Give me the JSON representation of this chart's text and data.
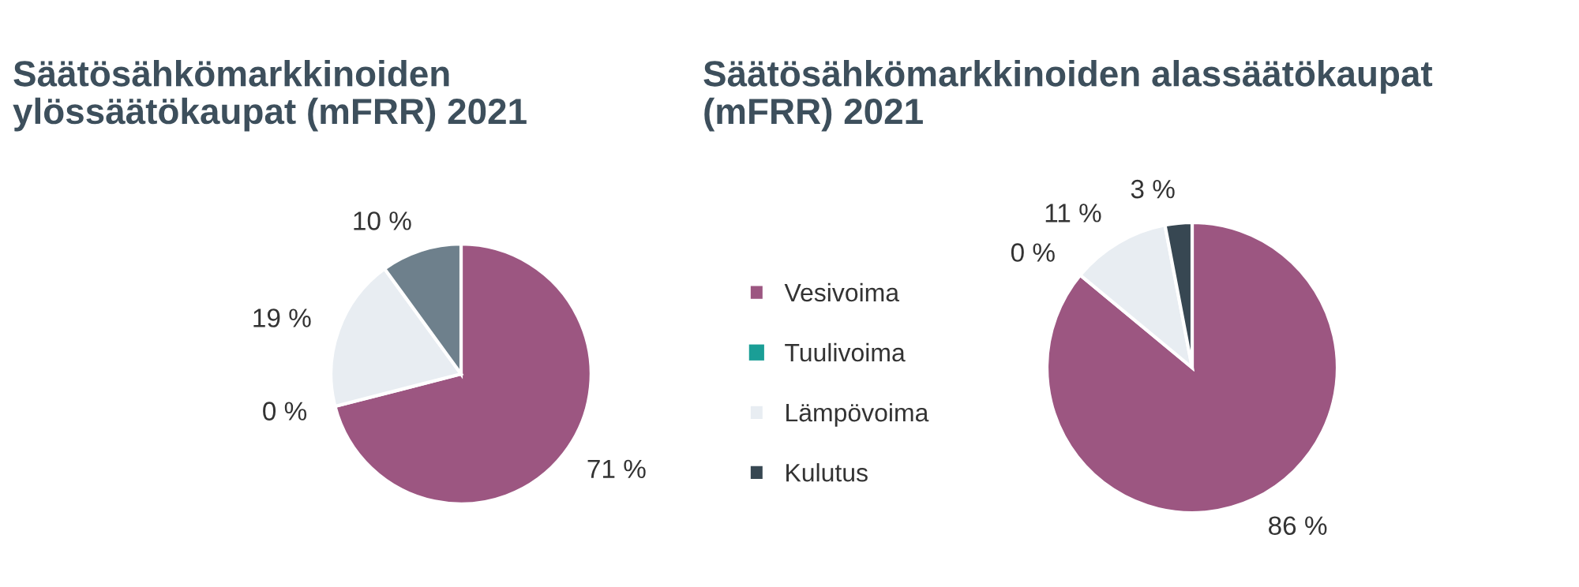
{
  "chart_data": [
    {
      "type": "pie",
      "title": "Säätösähkömarkkinoiden\nylössäätökaupat (mFRR) 2021",
      "values": [
        71,
        0,
        19,
        10
      ],
      "value_labels": [
        "71 %",
        "0 %",
        "19 %",
        "10 %"
      ],
      "colors": [
        "#9c5681",
        "#1a9e96",
        "#e8edf2",
        "#6e808c"
      ],
      "legend": false
    },
    {
      "type": "pie",
      "title": "Säätösähkömarkkinoiden alassäätökaupat\n(mFRR) 2021",
      "categories": [
        "Vesivoima",
        "Tuulivoima",
        "Lämpövoima",
        "Kulutus"
      ],
      "values": [
        86,
        0,
        11,
        3
      ],
      "value_labels": [
        "86 %",
        "0 %",
        "11 %",
        "3 %"
      ],
      "colors": [
        "#9c5681",
        "#1a9e96",
        "#e8edf2",
        "#374752"
      ],
      "legend": "left"
    }
  ]
}
